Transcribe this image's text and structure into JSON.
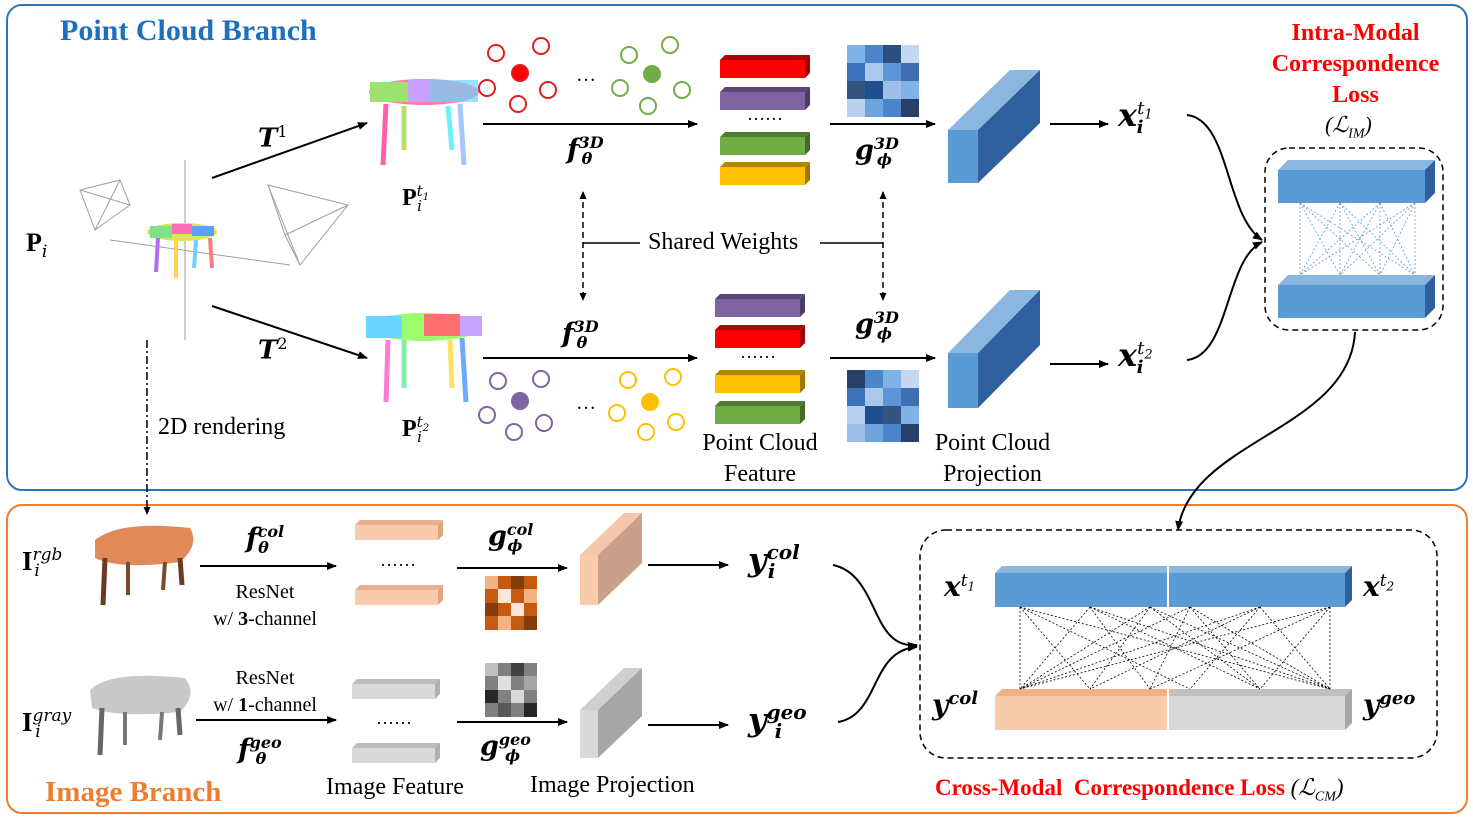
{
  "branches": {
    "point_cloud_title": "Point Cloud Branch",
    "image_title": "Image Branch"
  },
  "losses": {
    "intra_modal": [
      "Intra-Modal",
      "Correspondence",
      "Loss"
    ],
    "intra_modal_symbol": "(ℒ",
    "intra_modal_sub": "IM",
    "cross_modal_a": "Cross-Modal",
    "cross_modal_b": "Correspondence Loss",
    "cross_modal_symbol": "(ℒ",
    "cross_modal_sub": "CM"
  },
  "labels": {
    "shared_weights": "Shared Weights",
    "rendering": "2D rendering",
    "pc_feature": [
      "Point Cloud",
      "Feature"
    ],
    "pc_projection": [
      "Point Cloud",
      "Projection"
    ],
    "resnet_3": [
      "ResNet",
      "w/ ",
      "3",
      "-channel"
    ],
    "resnet_1": [
      "ResNet",
      "w/ ",
      "1",
      "-channel"
    ],
    "image_feature": "Image Feature",
    "image_projection": "Image Projection",
    "dots": "……",
    "ellipsis": "…"
  },
  "math": {
    "P": "P",
    "i": "i",
    "T": "T",
    "t1": "1",
    "t2": "2",
    "f": "f",
    "g": "g",
    "theta": "θ",
    "phi": "ϕ",
    "sup3d": "3D",
    "col": "col",
    "geo": "geo",
    "x": "x",
    "y": "y",
    "I": "I",
    "rgb": "rgb",
    "gray": "gray",
    "t": "t",
    "one": "1",
    "two": "2"
  },
  "colors": {
    "pc_border": "#2e75b6",
    "img_border": "#ed7d31",
    "loss_text": "#ff0000",
    "block_blue": "#5b9bd5",
    "block_peach": "#f8cbad",
    "block_gray": "#d9d9d9",
    "feat_red": "#ff0000",
    "feat_purple": "#8064a2",
    "feat_green": "#70ad47",
    "feat_yellow": "#ffc000"
  }
}
